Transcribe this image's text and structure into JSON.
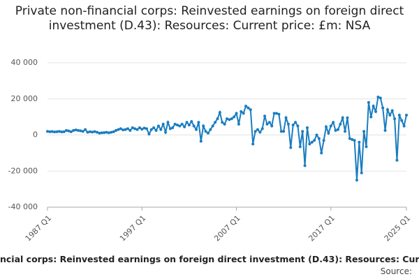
{
  "chart_data": {
    "type": "line",
    "title": "Private non-financial corps: Reinvested earnings on foreign direct investment (D.43): Resources: Current price: £m: NSA",
    "footer": "ncial corps: Reinvested earnings on foreign direct investment (D.43): Resources: Curr",
    "source": "Source:",
    "categories": [
      "1987 Q1",
      null,
      null,
      null,
      null,
      null,
      null,
      null,
      null,
      null,
      null,
      null,
      null,
      null,
      null,
      null,
      null,
      null,
      null,
      null,
      null,
      null,
      null,
      null,
      null,
      null,
      null,
      null,
      null,
      null,
      null,
      null,
      null,
      null,
      null,
      null,
      null,
      null,
      null,
      null,
      "1997 Q1",
      null,
      null,
      null,
      null,
      null,
      null,
      null,
      null,
      null,
      null,
      null,
      null,
      null,
      null,
      null,
      null,
      null,
      null,
      null,
      null,
      null,
      null,
      null,
      null,
      null,
      null,
      null,
      null,
      null,
      null,
      null,
      null,
      null,
      null,
      null,
      null,
      null,
      null,
      null,
      "2007 Q1",
      null,
      null,
      null,
      null,
      null,
      null,
      null,
      null,
      null,
      null,
      null,
      null,
      null,
      null,
      null,
      null,
      null,
      null,
      null,
      null,
      null,
      null,
      null,
      null,
      null,
      null,
      null,
      null,
      null,
      null,
      null,
      null,
      null,
      null,
      null,
      null,
      null,
      null,
      null,
      "2017 Q1",
      null,
      null,
      null,
      null,
      null,
      null,
      null,
      null,
      null,
      null,
      null,
      null,
      null,
      null,
      null,
      null,
      null,
      null,
      null,
      null,
      null,
      null,
      null,
      null,
      null,
      null,
      null,
      null,
      null,
      null,
      null,
      "2025 Q1"
    ],
    "series": [
      {
        "color": "#1a7dc0",
        "values": [
          2000,
          1800,
          1900,
          1700,
          1800,
          2000,
          1700,
          1800,
          2500,
          2200,
          1800,
          2500,
          2800,
          2500,
          2300,
          2000,
          3000,
          1500,
          1800,
          1600,
          1900,
          1500,
          1000,
          1200,
          1300,
          1500,
          1200,
          1500,
          1800,
          2500,
          3000,
          3500,
          2800,
          3000,
          3500,
          2500,
          4000,
          3500,
          3000,
          4000,
          3200,
          3800,
          3500,
          500,
          3000,
          4000,
          2500,
          5000,
          3000,
          6000,
          1500,
          7000,
          3500,
          4000,
          6000,
          5500,
          5000,
          6000,
          4500,
          7000,
          5500,
          7500,
          5000,
          3000,
          7000,
          -3500,
          5000,
          2000,
          1000,
          3000,
          5000,
          7000,
          9000,
          12500,
          7000,
          6000,
          9000,
          8500,
          9000,
          10000,
          12000,
          6000,
          13000,
          12000,
          16000,
          15000,
          14000,
          -5000,
          2000,
          3000,
          1500,
          3500,
          10500,
          6000,
          7000,
          5000,
          12000,
          12000,
          11500,
          2000,
          2000,
          9500,
          6000,
          -7000,
          5500,
          7000,
          5000,
          -6500,
          2000,
          -17000,
          4000,
          -5000,
          -4000,
          -3000,
          0,
          -2000,
          -10000,
          -3000,
          4500,
          1000,
          5000,
          7000,
          2500,
          3000,
          6000,
          9500,
          2000,
          9500,
          -2000,
          -2500,
          -3000,
          -25000,
          -4000,
          -21000,
          2000,
          -6500,
          18000,
          10000,
          16000,
          13000,
          21000,
          20500,
          15000,
          2500,
          14000,
          11000,
          13500,
          9000,
          -14000,
          11000,
          8000,
          5000,
          11000
        ]
      }
    ],
    "ylim": [
      -40000,
      40000
    ],
    "yticks": [
      {
        "value": -40000,
        "label": "-40 000"
      },
      {
        "value": -20000,
        "label": "-20 000"
      },
      0,
      {
        "value": 20000,
        "label": "20 000"
      },
      {
        "value": 40000,
        "label": "40 000"
      }
    ],
    "grid": true
  }
}
